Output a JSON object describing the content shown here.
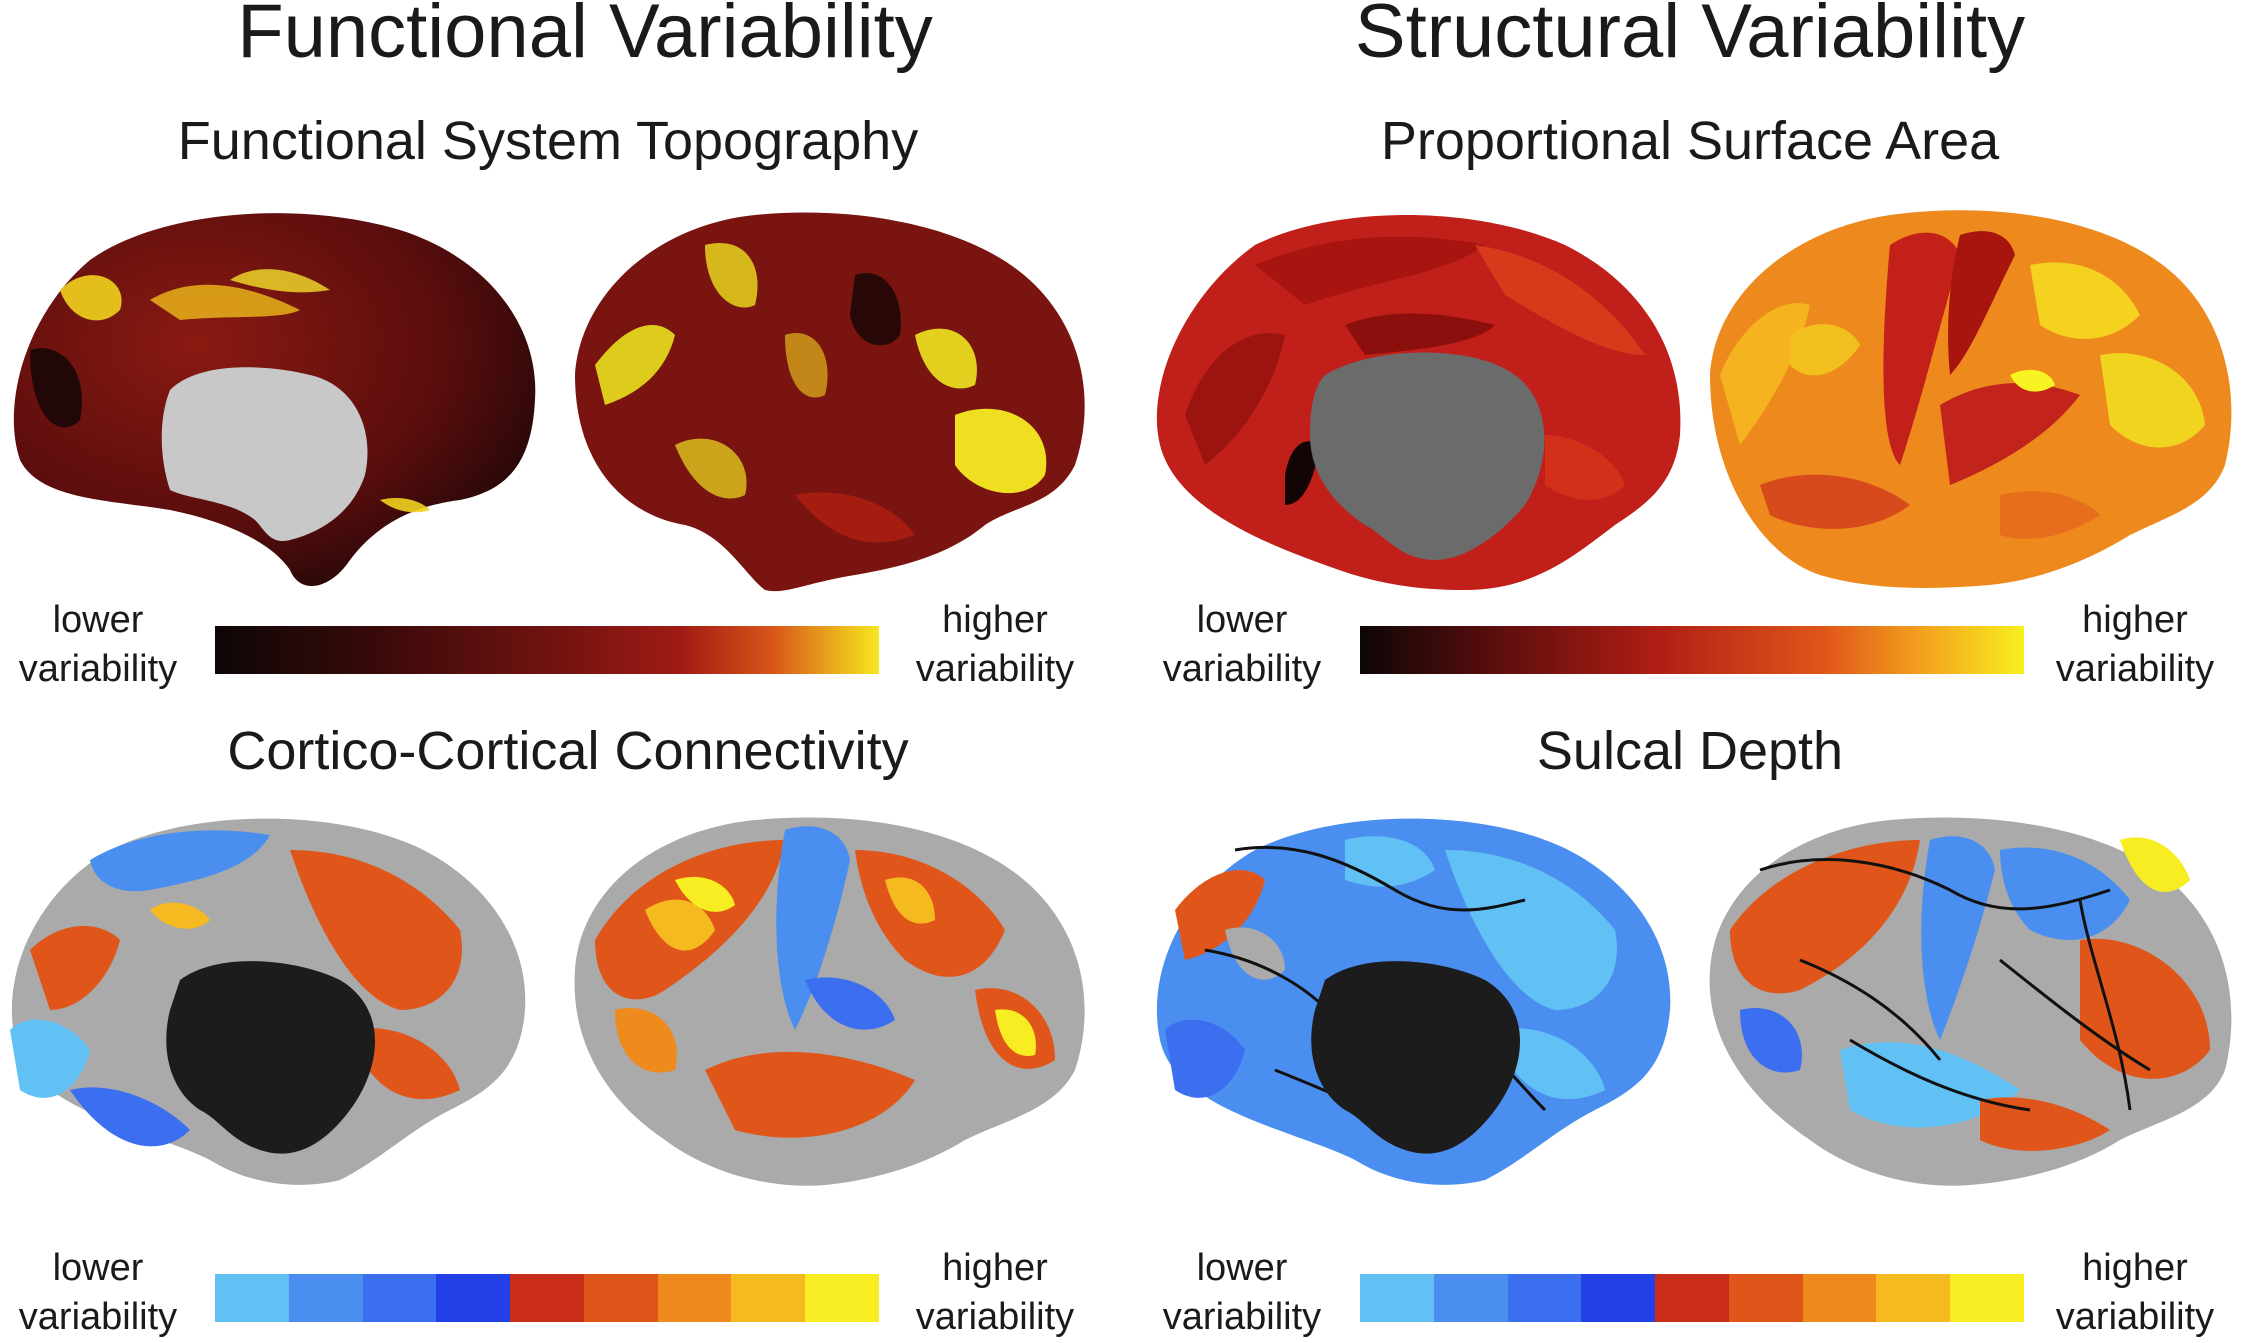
{
  "columns": [
    {
      "title": "Functional Variability",
      "panels": [
        {
          "title": "Functional System Topography",
          "colorbar": {
            "low_label_1": "lower",
            "low_label_2": "variability",
            "high_label_1": "higher",
            "high_label_2": "variability",
            "colormap": "hot"
          }
        },
        {
          "title": "Cortico-Cortical Connectivity",
          "colorbar": {
            "low_label_1": "lower",
            "low_label_2": "variability",
            "high_label_1": "higher",
            "high_label_2": "variability",
            "colormap": "cool-warm-stepped"
          }
        }
      ]
    },
    {
      "title": "Structural Variability",
      "panels": [
        {
          "title": "Proportional Surface Area",
          "colorbar": {
            "low_label_1": "lower",
            "low_label_2": "variability",
            "high_label_1": "higher",
            "high_label_2": "variability",
            "colormap": "hot"
          }
        },
        {
          "title": "Sulcal Depth",
          "colorbar": {
            "low_label_1": "lower",
            "low_label_2": "variability",
            "high_label_1": "higher",
            "high_label_2": "variability",
            "colormap": "cool-warm-stepped"
          }
        }
      ]
    }
  ],
  "colors": {
    "hot": [
      "#0d0606",
      "#5a0d0d",
      "#9a1a14",
      "#d8561a",
      "#f7e81f"
    ],
    "cool_warm": [
      "#61c1f5",
      "#4a8ff0",
      "#3c6ef0",
      "#2240e6",
      "#c92d1a",
      "#e0561a",
      "#ef8a1d",
      "#f5ba1f",
      "#f8ec22"
    ],
    "medial_wall_light": "#c8c8c8",
    "medial_wall_mid": "#6b6b6b",
    "medial_wall_dark": "#1c1c1c",
    "neutral_surface": "#a8a8a8"
  }
}
